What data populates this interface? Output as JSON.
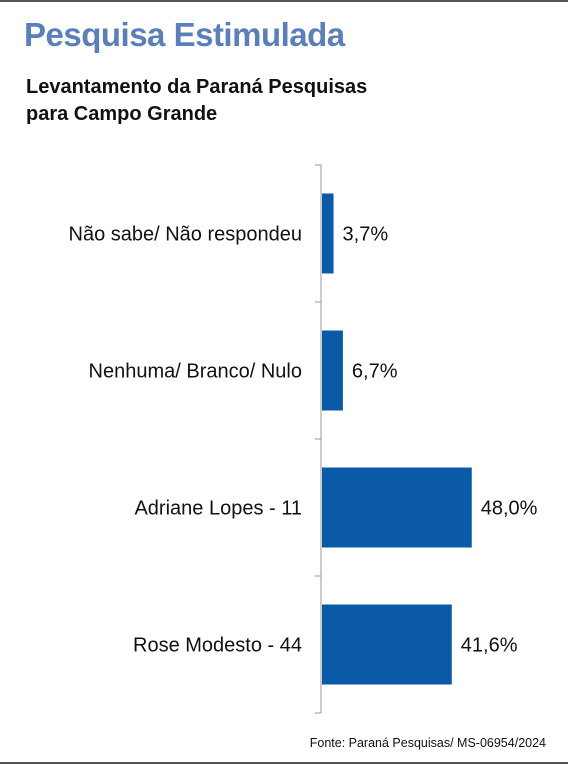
{
  "header": {
    "title": "Pesquisa Estimulada",
    "subtitle_line1": "Levantamento da Paraná Pesquisas",
    "subtitle_line2": "para Campo Grande"
  },
  "colors": {
    "title": "#5b7fb8",
    "bar": "#0a5aa8",
    "axis": "#999999"
  },
  "chart_data": {
    "type": "bar",
    "orientation": "horizontal",
    "categories": [
      "Não sabe/ Não respondeu",
      "Nenhuma/ Branco/ Nulo",
      "Adriane Lopes - 11",
      "Rose Modesto - 44"
    ],
    "values": [
      3.7,
      6.7,
      48.0,
      41.6
    ],
    "value_labels": [
      "3,7%",
      "6,7%",
      "48,0%",
      "41,6%"
    ],
    "unit": "%",
    "xlim": [
      0,
      50
    ]
  },
  "source": "Fonte: Paraná Pesquisas/ MS-06954/2024"
}
